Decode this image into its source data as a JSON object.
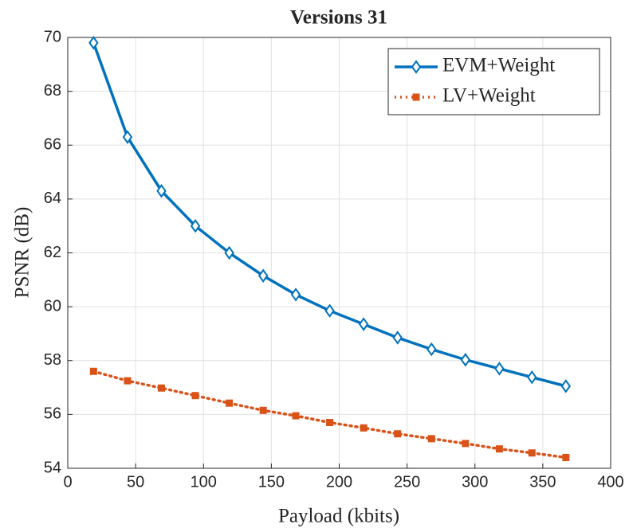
{
  "chart_data": {
    "type": "line",
    "title": "Versions 31",
    "xlabel": "Payload (kbits)",
    "ylabel": "PSNR (dB)",
    "x": [
      19,
      44,
      69,
      94,
      119,
      144,
      168,
      193,
      218,
      243,
      268,
      293,
      318,
      342,
      367
    ],
    "series": [
      {
        "name": "EVM+Weight",
        "color": "#0072bd",
        "marker": "diamond",
        "line_style": "solid",
        "values": [
          69.8,
          66.3,
          64.3,
          63.0,
          62.0,
          61.15,
          60.45,
          59.85,
          59.35,
          58.85,
          58.42,
          58.03,
          57.7,
          57.38,
          57.05
        ]
      },
      {
        "name": "LV+Weight",
        "color": "#d95319",
        "marker": "square",
        "line_style": "dotted",
        "values": [
          57.6,
          57.25,
          56.98,
          56.7,
          56.42,
          56.15,
          55.95,
          55.7,
          55.5,
          55.28,
          55.1,
          54.92,
          54.72,
          54.57,
          54.4
        ]
      }
    ],
    "xlim": [
      0,
      400
    ],
    "xticks": [
      0,
      50,
      100,
      150,
      200,
      250,
      300,
      350,
      400
    ],
    "ylim": [
      54,
      70
    ],
    "yticks": [
      54,
      56,
      58,
      60,
      62,
      64,
      66,
      68,
      70
    ],
    "grid": true,
    "legend_loc": "northeast"
  }
}
